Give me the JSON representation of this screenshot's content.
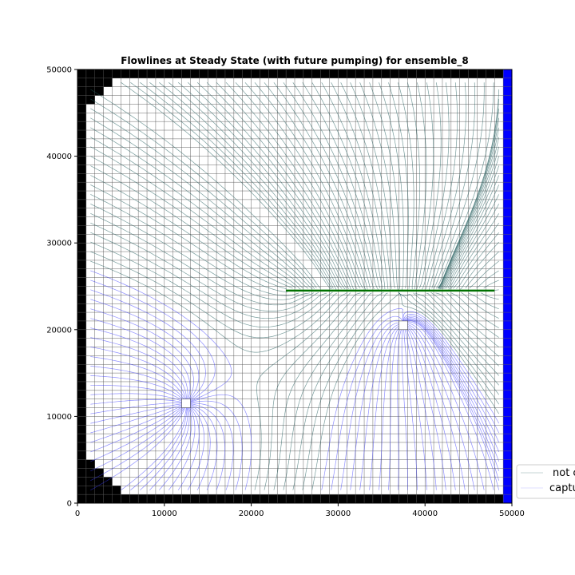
{
  "chart_data": {
    "type": "scatter",
    "title": "Flowlines at Steady State (with future pumping) for ensemble_8",
    "xlabel": "",
    "ylabel": "",
    "xlim": [
      0,
      50000
    ],
    "ylim": [
      0,
      50000
    ],
    "xticks": [
      0,
      10000,
      20000,
      30000,
      40000,
      50000
    ],
    "yticks": [
      0,
      10000,
      20000,
      30000,
      40000,
      50000
    ],
    "xtick_labels": [
      "0",
      "10000",
      "20000",
      "30000",
      "40000",
      "50000"
    ],
    "ytick_labels": [
      "0",
      "10000",
      "20000",
      "30000",
      "40000",
      "50000"
    ],
    "grid": {
      "ncol": 50,
      "nrow": 50,
      "cell_size": 1000,
      "inactive_color": "#000000",
      "constant_head_color": "#0000ff",
      "constant_head_column": 49,
      "inactive_cells_left": [
        [
          0,
          4
        ],
        [
          1,
          3
        ],
        [
          2,
          2
        ],
        [
          3,
          1
        ],
        [
          4,
          0
        ],
        [
          5,
          0
        ],
        [
          6,
          0
        ],
        [
          7,
          0
        ],
        [
          8,
          0
        ],
        [
          9,
          0
        ],
        [
          10,
          0
        ],
        [
          11,
          0
        ],
        [
          12,
          0
        ],
        [
          13,
          0
        ],
        [
          14,
          0
        ],
        [
          15,
          0
        ],
        [
          16,
          0
        ],
        [
          17,
          0
        ],
        [
          18,
          0
        ],
        [
          19,
          0
        ],
        [
          20,
          0
        ],
        [
          21,
          0
        ],
        [
          22,
          0
        ],
        [
          23,
          0
        ],
        [
          24,
          0
        ],
        [
          25,
          0
        ],
        [
          26,
          0
        ],
        [
          27,
          0
        ],
        [
          28,
          0
        ],
        [
          29,
          0
        ],
        [
          30,
          0
        ],
        [
          31,
          0
        ],
        [
          32,
          0
        ],
        [
          33,
          0
        ],
        [
          34,
          0
        ],
        [
          35,
          0
        ],
        [
          36,
          0
        ],
        [
          37,
          0
        ],
        [
          38,
          0
        ],
        [
          39,
          0
        ],
        [
          40,
          0
        ],
        [
          41,
          0
        ],
        [
          42,
          0
        ],
        [
          43,
          0
        ],
        [
          44,
          0
        ],
        [
          45,
          1
        ],
        [
          46,
          2
        ],
        [
          47,
          3
        ],
        [
          48,
          4
        ]
      ]
    },
    "wells": [
      {
        "name": "pumping well",
        "x": 12500,
        "y": 11500
      },
      {
        "name": "pumping well",
        "x": 37500,
        "y": 20500
      }
    ],
    "drain": {
      "x_start": 24000,
      "x_end": 48000,
      "y": 24500,
      "color": "#007000"
    },
    "series": [
      {
        "name": "not captured",
        "color": "#1f5c5c"
      },
      {
        "name": "captured",
        "color": "#3333ff"
      }
    ],
    "legend": {
      "position": "lower-right-outside",
      "entries": [
        "not c",
        "captu"
      ]
    }
  }
}
